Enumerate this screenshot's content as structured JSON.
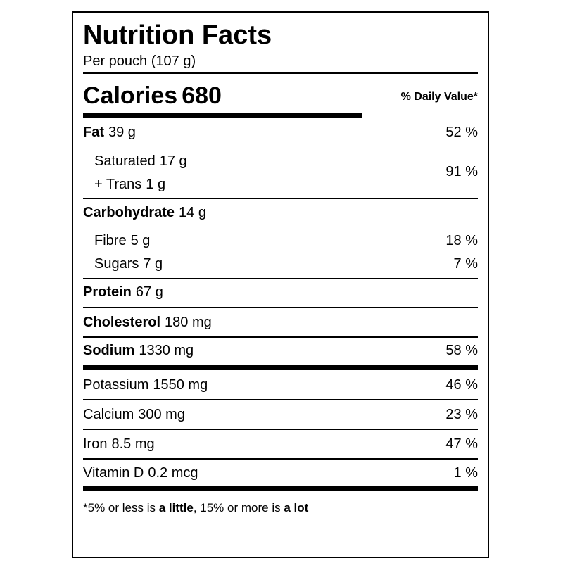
{
  "header": {
    "title": "Nutrition Facts",
    "serving": "Per pouch (107 g)"
  },
  "calories": {
    "label": "Calories",
    "value": 680,
    "daily_value_heading": "% Daily Value*"
  },
  "fat": {
    "name": "Fat",
    "amount": "39 g",
    "dv": "52 %",
    "sub": {
      "lines": [
        {
          "name": "Saturated",
          "amount": "17 g"
        },
        {
          "name": "+ Trans",
          "amount": "1 g"
        }
      ],
      "dv": "91 %"
    }
  },
  "carbohydrate": {
    "name": "Carbohydrate",
    "amount": "14 g",
    "sub": [
      {
        "name": "Fibre",
        "amount": "5 g",
        "dv": "18 %"
      },
      {
        "name": "Sugars",
        "amount": "7 g",
        "dv": "7 %"
      }
    ]
  },
  "nutrients": [
    {
      "name": "Protein",
      "amount": "67 g"
    },
    {
      "name": "Cholesterol",
      "amount": "180 mg"
    },
    {
      "name": "Sodium",
      "amount": "1330 mg",
      "dv": "58 %"
    }
  ],
  "minerals": [
    {
      "name": "Potassium",
      "amount": "1550 mg",
      "dv": "46 %"
    },
    {
      "name": "Calcium",
      "amount": "300 mg",
      "dv": "23 %"
    },
    {
      "name": "Iron",
      "amount": "8.5 mg",
      "dv": "47 %"
    },
    {
      "name": "Vitamin D",
      "amount": "0.2 mcg",
      "dv": "1 %"
    }
  ],
  "footnote": [
    "*5% or less is ",
    "a little",
    ", 15% or more is ",
    "a lot"
  ]
}
